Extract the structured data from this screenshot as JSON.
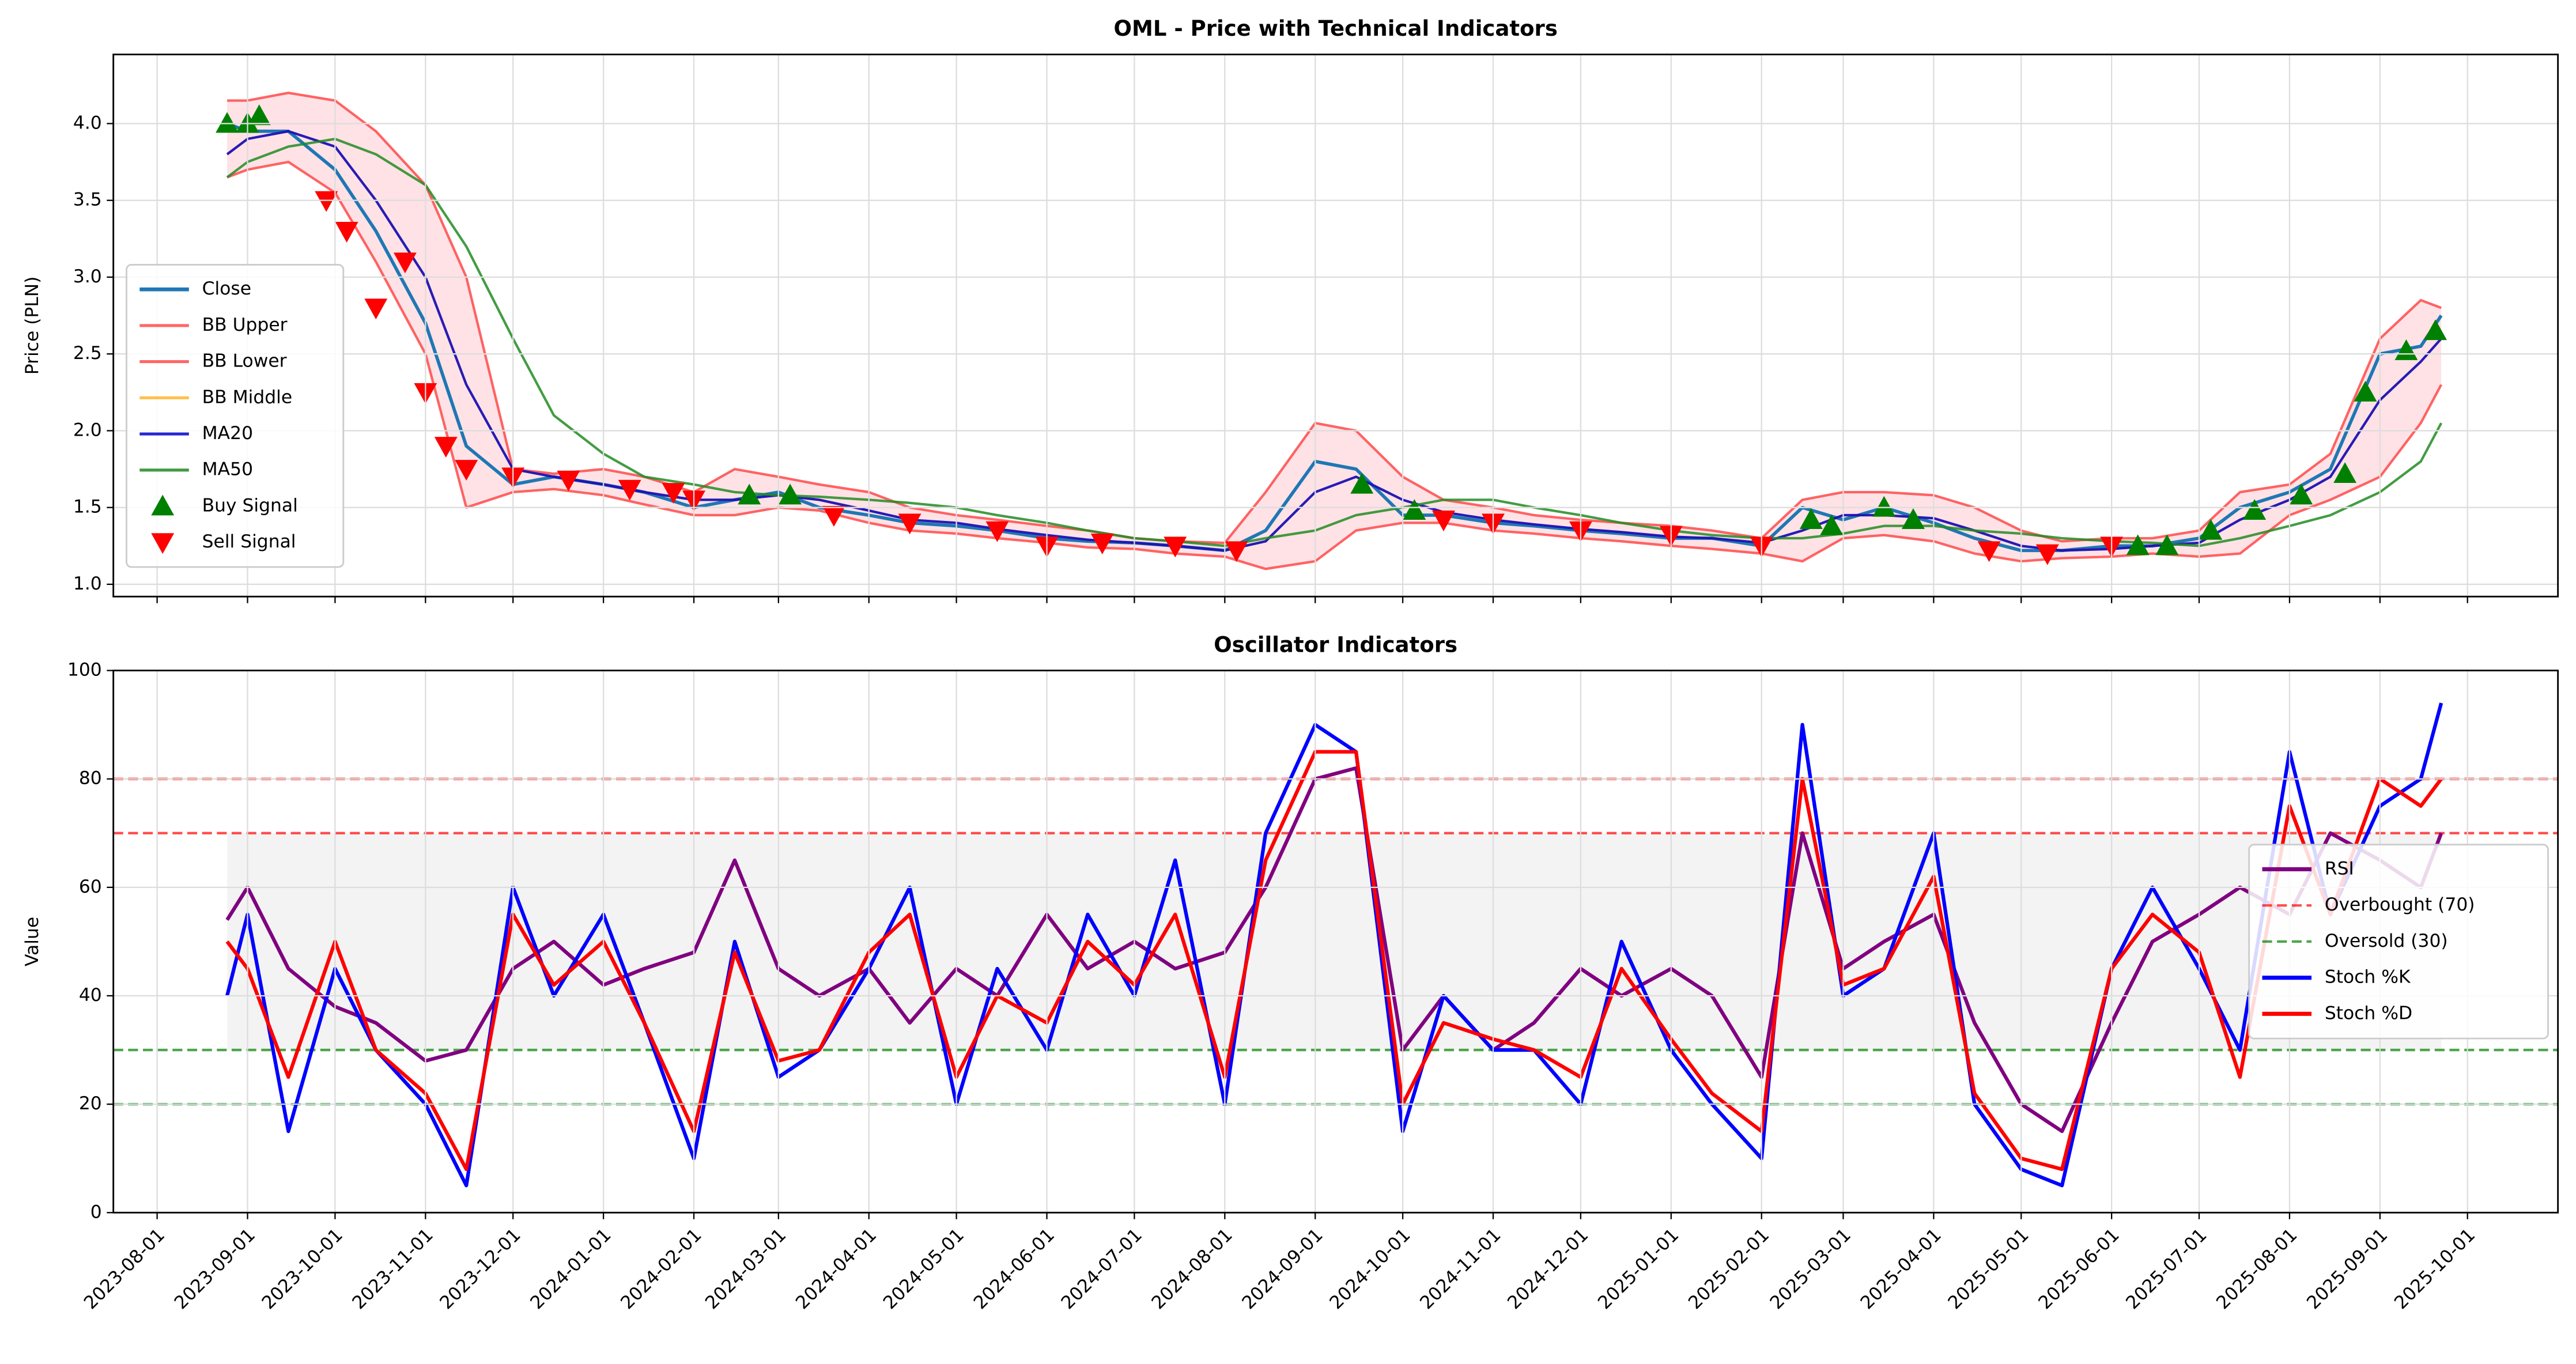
{
  "chart_data": [
    {
      "type": "line",
      "title": "OML - Price with Technical Indicators",
      "ylabel": "Price (PLN)",
      "x": [
        "2023-08-25",
        "2023-09-01",
        "2023-09-15",
        "2023-10-01",
        "2023-10-15",
        "2023-11-01",
        "2023-11-15",
        "2023-12-01",
        "2023-12-15",
        "2024-01-01",
        "2024-01-15",
        "2024-02-01",
        "2024-02-15",
        "2024-03-01",
        "2024-03-15",
        "2024-04-01",
        "2024-04-15",
        "2024-05-01",
        "2024-05-15",
        "2024-06-01",
        "2024-06-15",
        "2024-07-01",
        "2024-07-15",
        "2024-08-01",
        "2024-08-15",
        "2024-09-01",
        "2024-09-15",
        "2024-10-01",
        "2024-10-15",
        "2024-11-01",
        "2024-11-15",
        "2024-12-01",
        "2024-12-15",
        "2025-01-01",
        "2025-01-15",
        "2025-02-01",
        "2025-02-15",
        "2025-03-01",
        "2025-03-15",
        "2025-04-01",
        "2025-04-15",
        "2025-05-01",
        "2025-05-15",
        "2025-06-01",
        "2025-06-15",
        "2025-07-01",
        "2025-07-15",
        "2025-08-01",
        "2025-08-15",
        "2025-09-01",
        "2025-09-15",
        "2025-09-22"
      ],
      "series": [
        {
          "name": "Close",
          "color": "#1f77b4",
          "values": [
            4.0,
            3.95,
            3.95,
            3.7,
            3.3,
            2.7,
            1.9,
            1.65,
            1.7,
            1.65,
            1.6,
            1.5,
            1.55,
            1.6,
            1.5,
            1.45,
            1.4,
            1.38,
            1.35,
            1.3,
            1.28,
            1.27,
            1.25,
            1.22,
            1.35,
            1.8,
            1.75,
            1.45,
            1.45,
            1.4,
            1.38,
            1.35,
            1.33,
            1.3,
            1.3,
            1.25,
            1.5,
            1.42,
            1.5,
            1.4,
            1.3,
            1.22,
            1.22,
            1.25,
            1.25,
            1.3,
            1.5,
            1.6,
            1.75,
            2.5,
            2.55,
            2.75
          ]
        },
        {
          "name": "BB Upper",
          "color": "#ff3333",
          "values": [
            4.15,
            4.15,
            4.2,
            4.15,
            3.95,
            3.6,
            3.0,
            1.75,
            1.72,
            1.75,
            1.7,
            1.6,
            1.75,
            1.7,
            1.65,
            1.6,
            1.5,
            1.45,
            1.42,
            1.38,
            1.35,
            1.3,
            1.28,
            1.27,
            1.6,
            2.05,
            2.0,
            1.7,
            1.55,
            1.5,
            1.45,
            1.42,
            1.4,
            1.38,
            1.35,
            1.3,
            1.55,
            1.6,
            1.6,
            1.58,
            1.5,
            1.35,
            1.28,
            1.3,
            1.3,
            1.35,
            1.6,
            1.65,
            1.85,
            2.6,
            2.85,
            2.8
          ]
        },
        {
          "name": "BB Lower",
          "color": "#ff3333",
          "values": [
            3.65,
            3.7,
            3.75,
            3.55,
            3.1,
            2.5,
            1.5,
            1.6,
            1.62,
            1.58,
            1.52,
            1.45,
            1.45,
            1.5,
            1.48,
            1.4,
            1.35,
            1.33,
            1.3,
            1.27,
            1.24,
            1.23,
            1.2,
            1.18,
            1.1,
            1.15,
            1.35,
            1.4,
            1.4,
            1.35,
            1.33,
            1.3,
            1.28,
            1.25,
            1.23,
            1.2,
            1.15,
            1.3,
            1.32,
            1.28,
            1.2,
            1.15,
            1.17,
            1.18,
            1.2,
            1.18,
            1.2,
            1.45,
            1.55,
            1.7,
            2.05,
            2.3
          ]
        },
        {
          "name": "BB Middle",
          "color": "#ffa500",
          "values": [
            3.8,
            3.9,
            3.95,
            3.85,
            3.5,
            3.0,
            2.3,
            1.75,
            1.7,
            1.65,
            1.6,
            1.55,
            1.55,
            1.58,
            1.55,
            1.48,
            1.42,
            1.4,
            1.36,
            1.32,
            1.29,
            1.27,
            1.25,
            1.22,
            1.28,
            1.6,
            1.7,
            1.55,
            1.47,
            1.42,
            1.39,
            1.36,
            1.34,
            1.31,
            1.3,
            1.27,
            1.35,
            1.45,
            1.45,
            1.43,
            1.35,
            1.25,
            1.22,
            1.23,
            1.25,
            1.27,
            1.42,
            1.55,
            1.7,
            2.2,
            2.45,
            2.6
          ]
        },
        {
          "name": "MA20",
          "color": "#0000cc",
          "values": [
            3.8,
            3.9,
            3.95,
            3.85,
            3.5,
            3.0,
            2.3,
            1.75,
            1.7,
            1.65,
            1.6,
            1.55,
            1.55,
            1.58,
            1.55,
            1.48,
            1.42,
            1.4,
            1.36,
            1.32,
            1.29,
            1.27,
            1.25,
            1.22,
            1.28,
            1.6,
            1.7,
            1.55,
            1.47,
            1.42,
            1.39,
            1.36,
            1.34,
            1.31,
            1.3,
            1.27,
            1.35,
            1.45,
            1.45,
            1.43,
            1.35,
            1.25,
            1.22,
            1.23,
            1.25,
            1.27,
            1.42,
            1.55,
            1.7,
            2.2,
            2.45,
            2.6
          ]
        },
        {
          "name": "MA50",
          "color": "#228b22",
          "values": [
            3.65,
            3.75,
            3.85,
            3.9,
            3.8,
            3.6,
            3.2,
            2.6,
            2.1,
            1.85,
            1.7,
            1.65,
            1.6,
            1.58,
            1.57,
            1.55,
            1.53,
            1.5,
            1.45,
            1.4,
            1.35,
            1.3,
            1.28,
            1.25,
            1.3,
            1.35,
            1.45,
            1.5,
            1.55,
            1.55,
            1.5,
            1.45,
            1.4,
            1.35,
            1.32,
            1.3,
            1.3,
            1.33,
            1.38,
            1.38,
            1.35,
            1.33,
            1.3,
            1.28,
            1.27,
            1.25,
            1.3,
            1.38,
            1.45,
            1.6,
            1.8,
            2.05
          ]
        },
        {
          "name": "Buy Signal",
          "type": "scatter",
          "marker": "^",
          "color": "#008000",
          "x": [
            "2023-08-25",
            "2023-09-01",
            "2023-09-05",
            "2024-02-20",
            "2024-03-05",
            "2024-09-17",
            "2024-10-05",
            "2025-02-18",
            "2025-02-25",
            "2025-03-15",
            "2025-03-25",
            "2025-06-10",
            "2025-06-20",
            "2025-07-05",
            "2025-07-20",
            "2025-08-05",
            "2025-08-20",
            "2025-08-27",
            "2025-09-10",
            "2025-09-20"
          ],
          "values": [
            4.0,
            4.0,
            4.05,
            1.58,
            1.58,
            1.65,
            1.48,
            1.42,
            1.38,
            1.5,
            1.42,
            1.25,
            1.25,
            1.35,
            1.48,
            1.58,
            1.72,
            2.25,
            2.52,
            2.65
          ]
        },
        {
          "name": "Sell Signal",
          "type": "scatter",
          "marker": "v",
          "color": "#ff0000",
          "x": [
            "2023-09-28",
            "2023-10-05",
            "2023-10-15",
            "2023-10-25",
            "2023-11-01",
            "2023-11-08",
            "2023-11-15",
            "2023-12-01",
            "2023-12-20",
            "2024-01-10",
            "2024-01-25",
            "2024-02-01",
            "2024-03-20",
            "2024-04-15",
            "2024-05-15",
            "2024-06-01",
            "2024-06-20",
            "2024-07-15",
            "2024-08-05",
            "2024-10-15",
            "2024-11-01",
            "2024-12-01",
            "2025-01-01",
            "2025-02-01",
            "2025-04-20",
            "2025-05-10",
            "2025-06-01"
          ],
          "values": [
            3.5,
            3.3,
            2.8,
            3.1,
            2.25,
            1.9,
            1.75,
            1.7,
            1.68,
            1.62,
            1.6,
            1.55,
            1.45,
            1.4,
            1.35,
            1.25,
            1.27,
            1.25,
            1.22,
            1.42,
            1.4,
            1.35,
            1.32,
            1.25,
            1.22,
            1.2,
            1.25
          ]
        }
      ],
      "xlim": [
        "2023-07-17",
        "2025-11-01"
      ],
      "xticks": [
        "2023-08-01",
        "2023-09-01",
        "2023-10-01",
        "2023-11-01",
        "2023-12-01",
        "2024-01-01",
        "2024-02-01",
        "2024-03-01",
        "2024-04-01",
        "2024-05-01",
        "2024-06-01",
        "2024-07-01",
        "2024-08-01",
        "2024-09-01",
        "2024-10-01",
        "2024-11-01",
        "2024-12-01",
        "2025-01-01",
        "2025-02-01",
        "2025-03-01",
        "2025-04-01",
        "2025-05-01",
        "2025-06-01",
        "2025-07-01",
        "2025-08-01",
        "2025-09-01",
        "2025-10-01"
      ],
      "ylim": [
        0.92,
        4.45
      ],
      "yticks": [
        {
          "value": 1,
          "label": "1.0"
        },
        {
          "value": 1.5,
          "label": "1.5"
        },
        {
          "value": 2,
          "label": "2.0"
        },
        {
          "value": 2.5,
          "label": "2.5"
        },
        {
          "value": 3,
          "label": "3.0"
        },
        {
          "value": 3.5,
          "label": "3.5"
        },
        {
          "value": 4,
          "label": "4.0"
        }
      ],
      "grid": true,
      "legend": "center left"
    },
    {
      "type": "line",
      "title": "Oscillator Indicators",
      "ylabel": "Value",
      "x": [
        "2023-08-25",
        "2023-09-01",
        "2023-09-15",
        "2023-10-01",
        "2023-10-15",
        "2023-11-01",
        "2023-11-15",
        "2023-12-01",
        "2023-12-15",
        "2024-01-01",
        "2024-01-15",
        "2024-02-01",
        "2024-02-15",
        "2024-03-01",
        "2024-03-15",
        "2024-04-01",
        "2024-04-15",
        "2024-05-01",
        "2024-05-15",
        "2024-06-01",
        "2024-06-15",
        "2024-07-01",
        "2024-07-15",
        "2024-08-01",
        "2024-08-15",
        "2024-09-01",
        "2024-09-15",
        "2024-10-01",
        "2024-10-15",
        "2024-11-01",
        "2024-11-15",
        "2024-12-01",
        "2024-12-15",
        "2025-01-01",
        "2025-01-15",
        "2025-02-01",
        "2025-02-15",
        "2025-03-01",
        "2025-03-15",
        "2025-04-01",
        "2025-04-15",
        "2025-05-01",
        "2025-05-15",
        "2025-06-01",
        "2025-06-15",
        "2025-07-01",
        "2025-07-15",
        "2025-08-01",
        "2025-08-15",
        "2025-09-01",
        "2025-09-15",
        "2025-09-22"
      ],
      "series": [
        {
          "name": "RSI",
          "color": "#800080",
          "values": [
            54,
            60,
            45,
            38,
            35,
            28,
            30,
            45,
            50,
            42,
            45,
            48,
            65,
            45,
            40,
            45,
            35,
            45,
            40,
            55,
            45,
            50,
            45,
            48,
            60,
            80,
            82,
            30,
            40,
            30,
            35,
            45,
            40,
            45,
            40,
            25,
            70,
            45,
            50,
            55,
            35,
            20,
            15,
            35,
            50,
            55,
            60,
            55,
            70,
            65,
            60,
            70
          ]
        },
        {
          "name": "Stoch %K",
          "color": "#0000ff",
          "values": [
            40,
            55,
            15,
            45,
            30,
            20,
            5,
            60,
            40,
            55,
            35,
            10,
            50,
            25,
            30,
            45,
            60,
            20,
            45,
            30,
            55,
            40,
            65,
            20,
            70,
            90,
            85,
            15,
            40,
            30,
            30,
            20,
            50,
            30,
            20,
            10,
            90,
            40,
            45,
            70,
            20,
            8,
            5,
            45,
            60,
            45,
            30,
            85,
            55,
            75,
            80,
            94
          ]
        },
        {
          "name": "Stoch %D",
          "color": "#ff0000",
          "values": [
            50,
            45,
            25,
            50,
            30,
            22,
            8,
            55,
            42,
            50,
            35,
            15,
            48,
            28,
            30,
            48,
            55,
            25,
            40,
            35,
            50,
            42,
            55,
            25,
            65,
            85,
            85,
            20,
            35,
            32,
            30,
            25,
            45,
            32,
            22,
            15,
            80,
            42,
            45,
            62,
            22,
            10,
            8,
            45,
            55,
            48,
            25,
            75,
            55,
            80,
            75,
            80
          ]
        }
      ],
      "hlines": [
        {
          "name": "Overbought (70)",
          "value": 70,
          "color": "#ff0000"
        },
        {
          "name": "Oversold (30)",
          "value": 30,
          "color": "#008000"
        },
        {
          "value": 80,
          "color": "#ff0000"
        },
        {
          "value": 20,
          "color": "#008000"
        }
      ],
      "xlim": [
        "2023-07-17",
        "2025-11-01"
      ],
      "xticks": [
        "2023-08-01",
        "2023-09-01",
        "2023-10-01",
        "2023-11-01",
        "2023-12-01",
        "2024-01-01",
        "2024-02-01",
        "2024-03-01",
        "2024-04-01",
        "2024-05-01",
        "2024-06-01",
        "2024-07-01",
        "2024-08-01",
        "2024-09-01",
        "2024-10-01",
        "2024-11-01",
        "2024-12-01",
        "2025-01-01",
        "2025-02-01",
        "2025-03-01",
        "2025-04-01",
        "2025-05-01",
        "2025-06-01",
        "2025-07-01",
        "2025-08-01",
        "2025-09-01",
        "2025-10-01"
      ],
      "ylim": [
        0,
        100
      ],
      "yticks": [
        0,
        20,
        40,
        60,
        80,
        100
      ],
      "grid": true,
      "legend": "center right"
    }
  ]
}
